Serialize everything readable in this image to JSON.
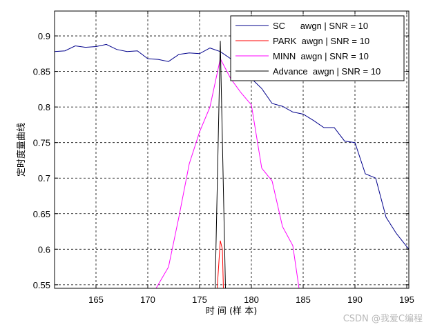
{
  "chart_data": {
    "type": "line",
    "xlabel": "时 间 (样 本)",
    "ylabel": "定时度量曲线",
    "xlim": [
      161,
      195.2
    ],
    "ylim": [
      0.545,
      0.935
    ],
    "xticks": [
      165,
      170,
      175,
      180,
      185,
      190,
      195
    ],
    "yticks": [
      0.55,
      0.6,
      0.65,
      0.7,
      0.75,
      0.8,
      0.85,
      0.9
    ],
    "xtick_labels": [
      "165",
      "170",
      "175",
      "180",
      "185",
      "190",
      "195"
    ],
    "ytick_labels": [
      "0.55",
      "0.6",
      "0.65",
      "0.7",
      "0.75",
      "0.8",
      "0.85",
      "0.9"
    ],
    "grid": true,
    "legend_position": "top-right",
    "series": [
      {
        "name": "SC      awgn | SNR = 10",
        "color": "#00008b",
        "x": [
          161,
          162,
          163,
          164,
          165,
          166,
          167,
          168,
          169,
          170,
          171,
          172,
          173,
          174,
          175,
          176,
          177,
          178,
          179,
          180,
          181,
          182,
          183,
          184,
          185,
          186,
          187,
          188,
          189,
          190,
          191,
          192,
          193,
          194,
          195.2
        ],
        "y": [
          0.878,
          0.879,
          0.886,
          0.884,
          0.885,
          0.888,
          0.881,
          0.878,
          0.879,
          0.868,
          0.867,
          0.864,
          0.874,
          0.876,
          0.875,
          0.883,
          0.878,
          0.868,
          0.848,
          0.84,
          0.826,
          0.805,
          0.801,
          0.793,
          0.79,
          0.781,
          0.771,
          0.771,
          0.752,
          0.75,
          0.706,
          0.7,
          0.645,
          0.622,
          0.6
        ]
      },
      {
        "name": "PARK  awgn | SNR = 10",
        "color": "#ff0000",
        "x": [
          176.7,
          177.0,
          177.2,
          177.3
        ],
        "y": [
          0.545,
          0.612,
          0.6,
          0.545
        ]
      },
      {
        "name": "MINN  awgn | SNR = 10",
        "color": "#ff00ff",
        "x": [
          170.8,
          172.0,
          173.0,
          174.0,
          175.0,
          176.0,
          177.0,
          178.0,
          179.0,
          180.0,
          181.0,
          182.0,
          183.0,
          184.0,
          184.6
        ],
        "y": [
          0.545,
          0.575,
          0.645,
          0.72,
          0.765,
          0.8,
          0.868,
          0.84,
          0.82,
          0.803,
          0.714,
          0.696,
          0.632,
          0.605,
          0.545
        ]
      },
      {
        "name": "Advance  awgn | SNR = 10",
        "color": "#000000",
        "x": [
          176.5,
          177.0,
          177.5
        ],
        "y": [
          0.545,
          0.893,
          0.545
        ]
      }
    ]
  },
  "watermark": "CSDN @我爱C编程"
}
